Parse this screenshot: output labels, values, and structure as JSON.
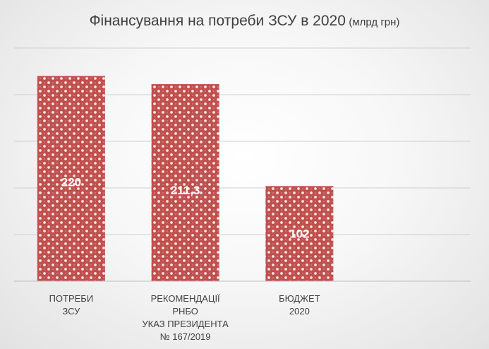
{
  "chart_data": {
    "type": "bar",
    "title": "Фінансування на потреби ЗСУ в 2020",
    "title_unit": "(млрд грн)",
    "categories": [
      [
        "ПОТРЕБИ",
        "ЗСУ"
      ],
      [
        "РЕКОМЕНДАЦІЇ",
        "РНБО",
        "УКАЗ ПРЕЗИДЕНТА",
        "№ 167/2019"
      ],
      [
        "БЮДЖЕТ",
        "2020"
      ]
    ],
    "values": [
      220,
      211.3,
      102
    ],
    "data_labels": [
      "220",
      "211,3",
      "102"
    ],
    "ylim": [
      0,
      250
    ],
    "grid": true,
    "legend": "none",
    "bar_color": "#c0504d",
    "pattern_color": "#ffffff"
  }
}
